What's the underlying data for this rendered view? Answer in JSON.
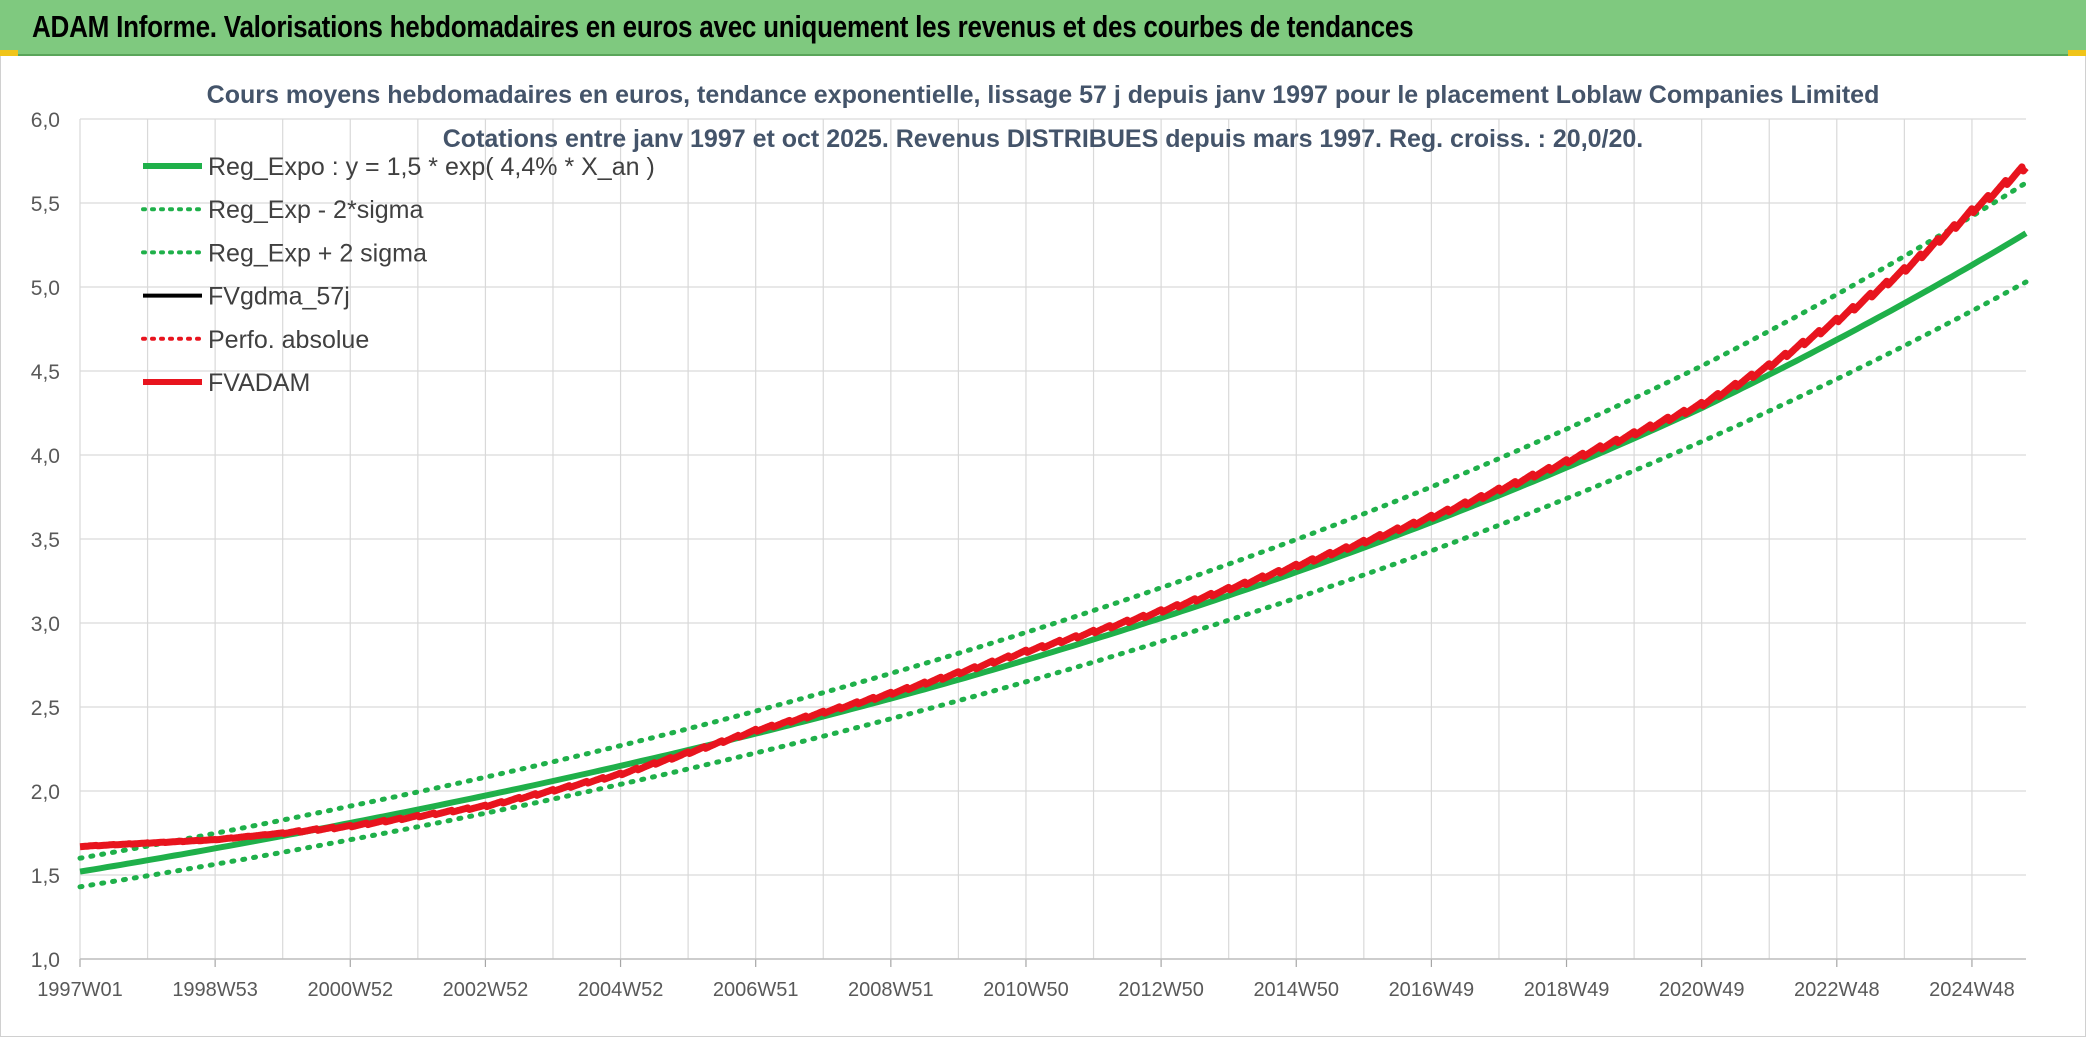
{
  "banner": {
    "title": "ADAM Informe. Valorisations hebdomadaires en euros avec uniquement les revenus et des courbes de tendances"
  },
  "colors": {
    "banner_bg": "#7fc97f",
    "green": "#1fb04a",
    "red": "#e8141e",
    "black": "#000000",
    "grid": "#d9d9d9"
  },
  "chart_data": {
    "type": "line",
    "title": "Cours moyens hebdomadaires en euros, tendance exponentielle, lissage 57 j depuis janv 1997 pour le placement Loblaw Companies Limited",
    "subtitle": "Cotations entre janv 1997 et oct 2025. Revenus DISTRIBUES depuis mars 1997. Reg. croiss. : 20,0/20.",
    "xlabel": "",
    "ylabel": "",
    "ylim": [
      1.0,
      6.0
    ],
    "xlim": [
      1997.0,
      2025.8
    ],
    "y_ticks": [
      "1,0",
      "1,5",
      "2,0",
      "2,5",
      "3,0",
      "3,5",
      "4,0",
      "4,5",
      "5,0",
      "5,5",
      "6,0"
    ],
    "x_tick_labels": [
      "1997W01",
      "1998W53",
      "2000W52",
      "2002W52",
      "2004W52",
      "2006W51",
      "2008W51",
      "2010W50",
      "2012W50",
      "2014W50",
      "2016W49",
      "2018W49",
      "2020W49",
      "2022W48",
      "2024W48"
    ],
    "grid": true,
    "legend_position": "top-left",
    "legend": [
      {
        "label": "Reg_Expo : y = 1,5 * exp( 4,4% *  X_an )",
        "style": "solid-thick",
        "color": "#1fb04a"
      },
      {
        "label": "Reg_Exp - 2*sigma",
        "style": "dotted",
        "color": "#1fb04a"
      },
      {
        "label": "Reg_Exp + 2 sigma",
        "style": "dotted",
        "color": "#1fb04a"
      },
      {
        "label": "FVgdma_57j",
        "style": "solid",
        "color": "#000000"
      },
      {
        "label": "Perfo. absolue",
        "style": "dotted",
        "color": "#e8141e"
      },
      {
        "label": "FVADAM",
        "style": "solid-thick",
        "color": "#e8141e"
      }
    ],
    "series": [
      {
        "name": "Reg_Expo : y = 1,5 * exp( 4,4% *  X_an )",
        "x": [
          1997,
          2001,
          2005,
          2009,
          2013,
          2017,
          2021,
          2025.8
        ],
        "values": [
          1.52,
          1.81,
          2.15,
          2.55,
          3.03,
          3.6,
          4.28,
          5.32
        ]
      },
      {
        "name": "Reg_Exp - 2*sigma",
        "x": [
          1997,
          2001,
          2005,
          2009,
          2013,
          2017,
          2021,
          2025.8
        ],
        "values": [
          1.43,
          1.71,
          2.04,
          2.43,
          2.89,
          3.43,
          4.08,
          5.03
        ]
      },
      {
        "name": "Reg_Exp + 2 sigma",
        "x": [
          1997,
          2001,
          2005,
          2009,
          2013,
          2017,
          2021,
          2025.8
        ],
        "values": [
          1.6,
          1.91,
          2.27,
          2.7,
          3.21,
          3.81,
          4.53,
          5.62
        ]
      },
      {
        "name": "FVADAM",
        "x": [
          1997,
          1999,
          2001,
          2003,
          2005,
          2007,
          2009,
          2011,
          2013,
          2015,
          2017,
          2019,
          2021,
          2022,
          2023,
          2024,
          2025,
          2025.8
        ],
        "values": [
          1.67,
          1.71,
          1.79,
          1.91,
          2.1,
          2.36,
          2.58,
          2.83,
          3.07,
          3.34,
          3.63,
          3.96,
          4.3,
          4.53,
          4.8,
          5.1,
          5.45,
          5.72
        ]
      }
    ]
  }
}
